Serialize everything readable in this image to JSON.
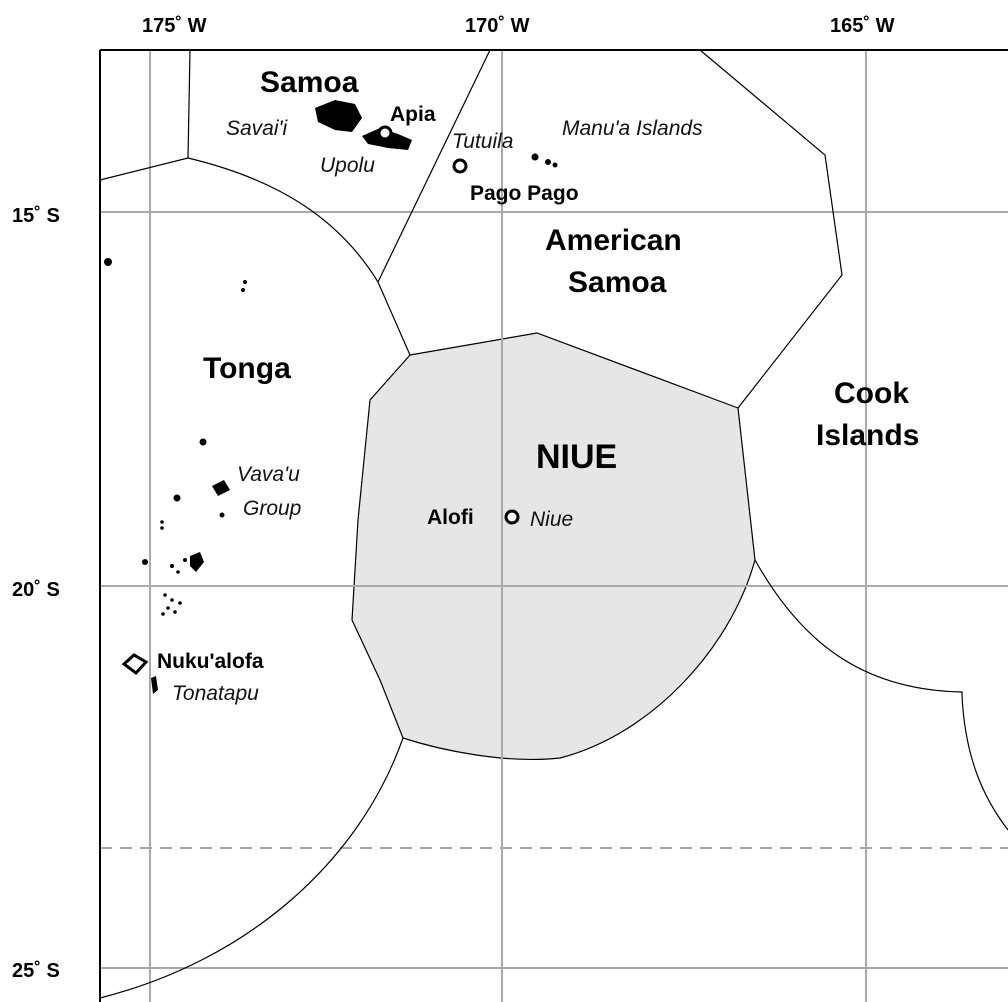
{
  "longitudes": [
    "175˚ W",
    "170˚ W",
    "165˚ W"
  ],
  "latitudes": [
    "15˚ S",
    "20˚ S",
    "25˚ S"
  ],
  "regions": {
    "samoa": "Samoa",
    "american_samoa_line1": "American",
    "american_samoa_line2": "Samoa",
    "tonga": "Tonga",
    "niue": "NIUE",
    "cook_line1": "Cook",
    "cook_line2": "Islands"
  },
  "islands": {
    "savaii": "Savai'i",
    "upolu": "Upolu",
    "tutuila": "Tutuila",
    "manua": "Manu'a Islands",
    "vavau_line1": "Vava'u",
    "vavau_line2": "Group",
    "niue_island": "Niue",
    "tonatapu": "Tonatapu"
  },
  "capitals": {
    "apia": "Apia",
    "pago_pago": "Pago Pago",
    "alofi": "Alofi",
    "nukualofa": "Nuku'alofa"
  },
  "colors": {
    "niue_fill": "#e6e6e6",
    "background": "#ffffff",
    "grid": "#aaaaaa",
    "border": "#000000"
  }
}
